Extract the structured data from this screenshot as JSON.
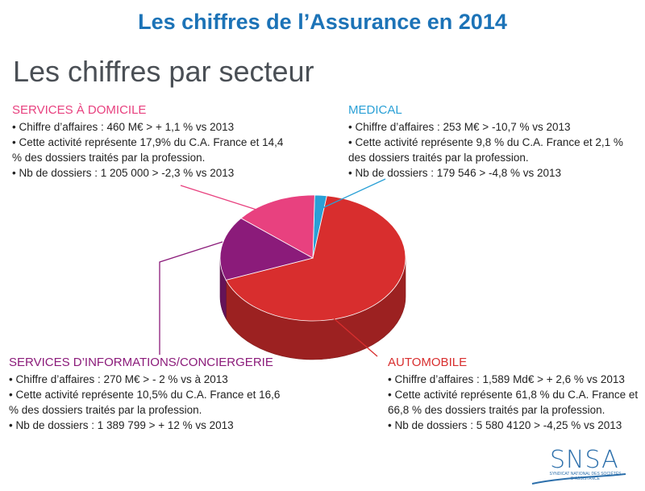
{
  "header": {
    "title": "Les chiffres de l’Assurance en 2014",
    "subtitle": "Les chiffres par secteur"
  },
  "colors": {
    "title_blue": "#1c73b7",
    "domicile": "#e8417f",
    "medical": "#2aa0d6",
    "info": "#8b1b7a",
    "auto": "#d82e2e"
  },
  "sectors": {
    "domicile": {
      "heading": "SERVICES À DOMICILE",
      "lines": [
        "• Chiffre d’affaires : 460 M€  > + 1,1 % vs 2013",
        "• Cette activité représente 17,9% du C.A. France et 14,4 %  des dossiers traités par la profession.",
        "• Nb de dossiers : 1 205 000  > -2,3 % vs 2013"
      ]
    },
    "medical": {
      "heading": "MEDICAL",
      "lines": [
        "• Chiffre d’affaires : 253 M€  > -10,7 % vs 2013",
        "• Cette activité représente 9,8 % du C.A. France et 2,1 % des dossiers traités par la profession.",
        "• Nb de dossiers : 179 546 > -4,8 % vs 2013"
      ]
    },
    "info": {
      "heading": "SERVICES D’INFORMATIONS/CONCIERGERIE",
      "lines": [
        "• Chiffre d’affaires : 270 M€  > - 2 % vs à 2013",
        "• Cette activité représente 10,5% du C.A. France et 16,6 % des dossiers traités par la profession.",
        "• Nb de dossiers : 1 389 799 > + 12 % vs 2013"
      ]
    },
    "auto": {
      "heading": "AUTOMOBILE",
      "lines": [
        "• Chiffre d’affaires : 1,589 Md€  > + 2,6 % vs 2013",
        "• Cette activité représente 61,8 % du C.A. France et 66,8 % des dossiers traités par la profession.",
        "• Nb de dossiers : 5 580 4120 > -4,25 % vs 2013"
      ]
    }
  },
  "chart_data": {
    "type": "pie",
    "title": "",
    "slices": [
      {
        "key": "medical",
        "label": "MEDICAL",
        "value": 2.1,
        "color": "#2aa0d6"
      },
      {
        "key": "auto",
        "label": "AUTOMOBILE",
        "value": 66.8,
        "color": "#d82e2e"
      },
      {
        "key": "info",
        "label": "SERVICES D’INFORMATIONS/CONCIERGERIE",
        "value": 16.6,
        "color": "#8b1b7a"
      },
      {
        "key": "domicile",
        "label": "SERVICES À DOMICILE",
        "value": 14.4,
        "color": "#e8417f"
      }
    ],
    "style": "3d-pie"
  },
  "logo": {
    "name": "SNSA",
    "tagline": "SYNDICAT NATIONAL DES SOCIÉTÉS D’ASSISTANCE"
  }
}
